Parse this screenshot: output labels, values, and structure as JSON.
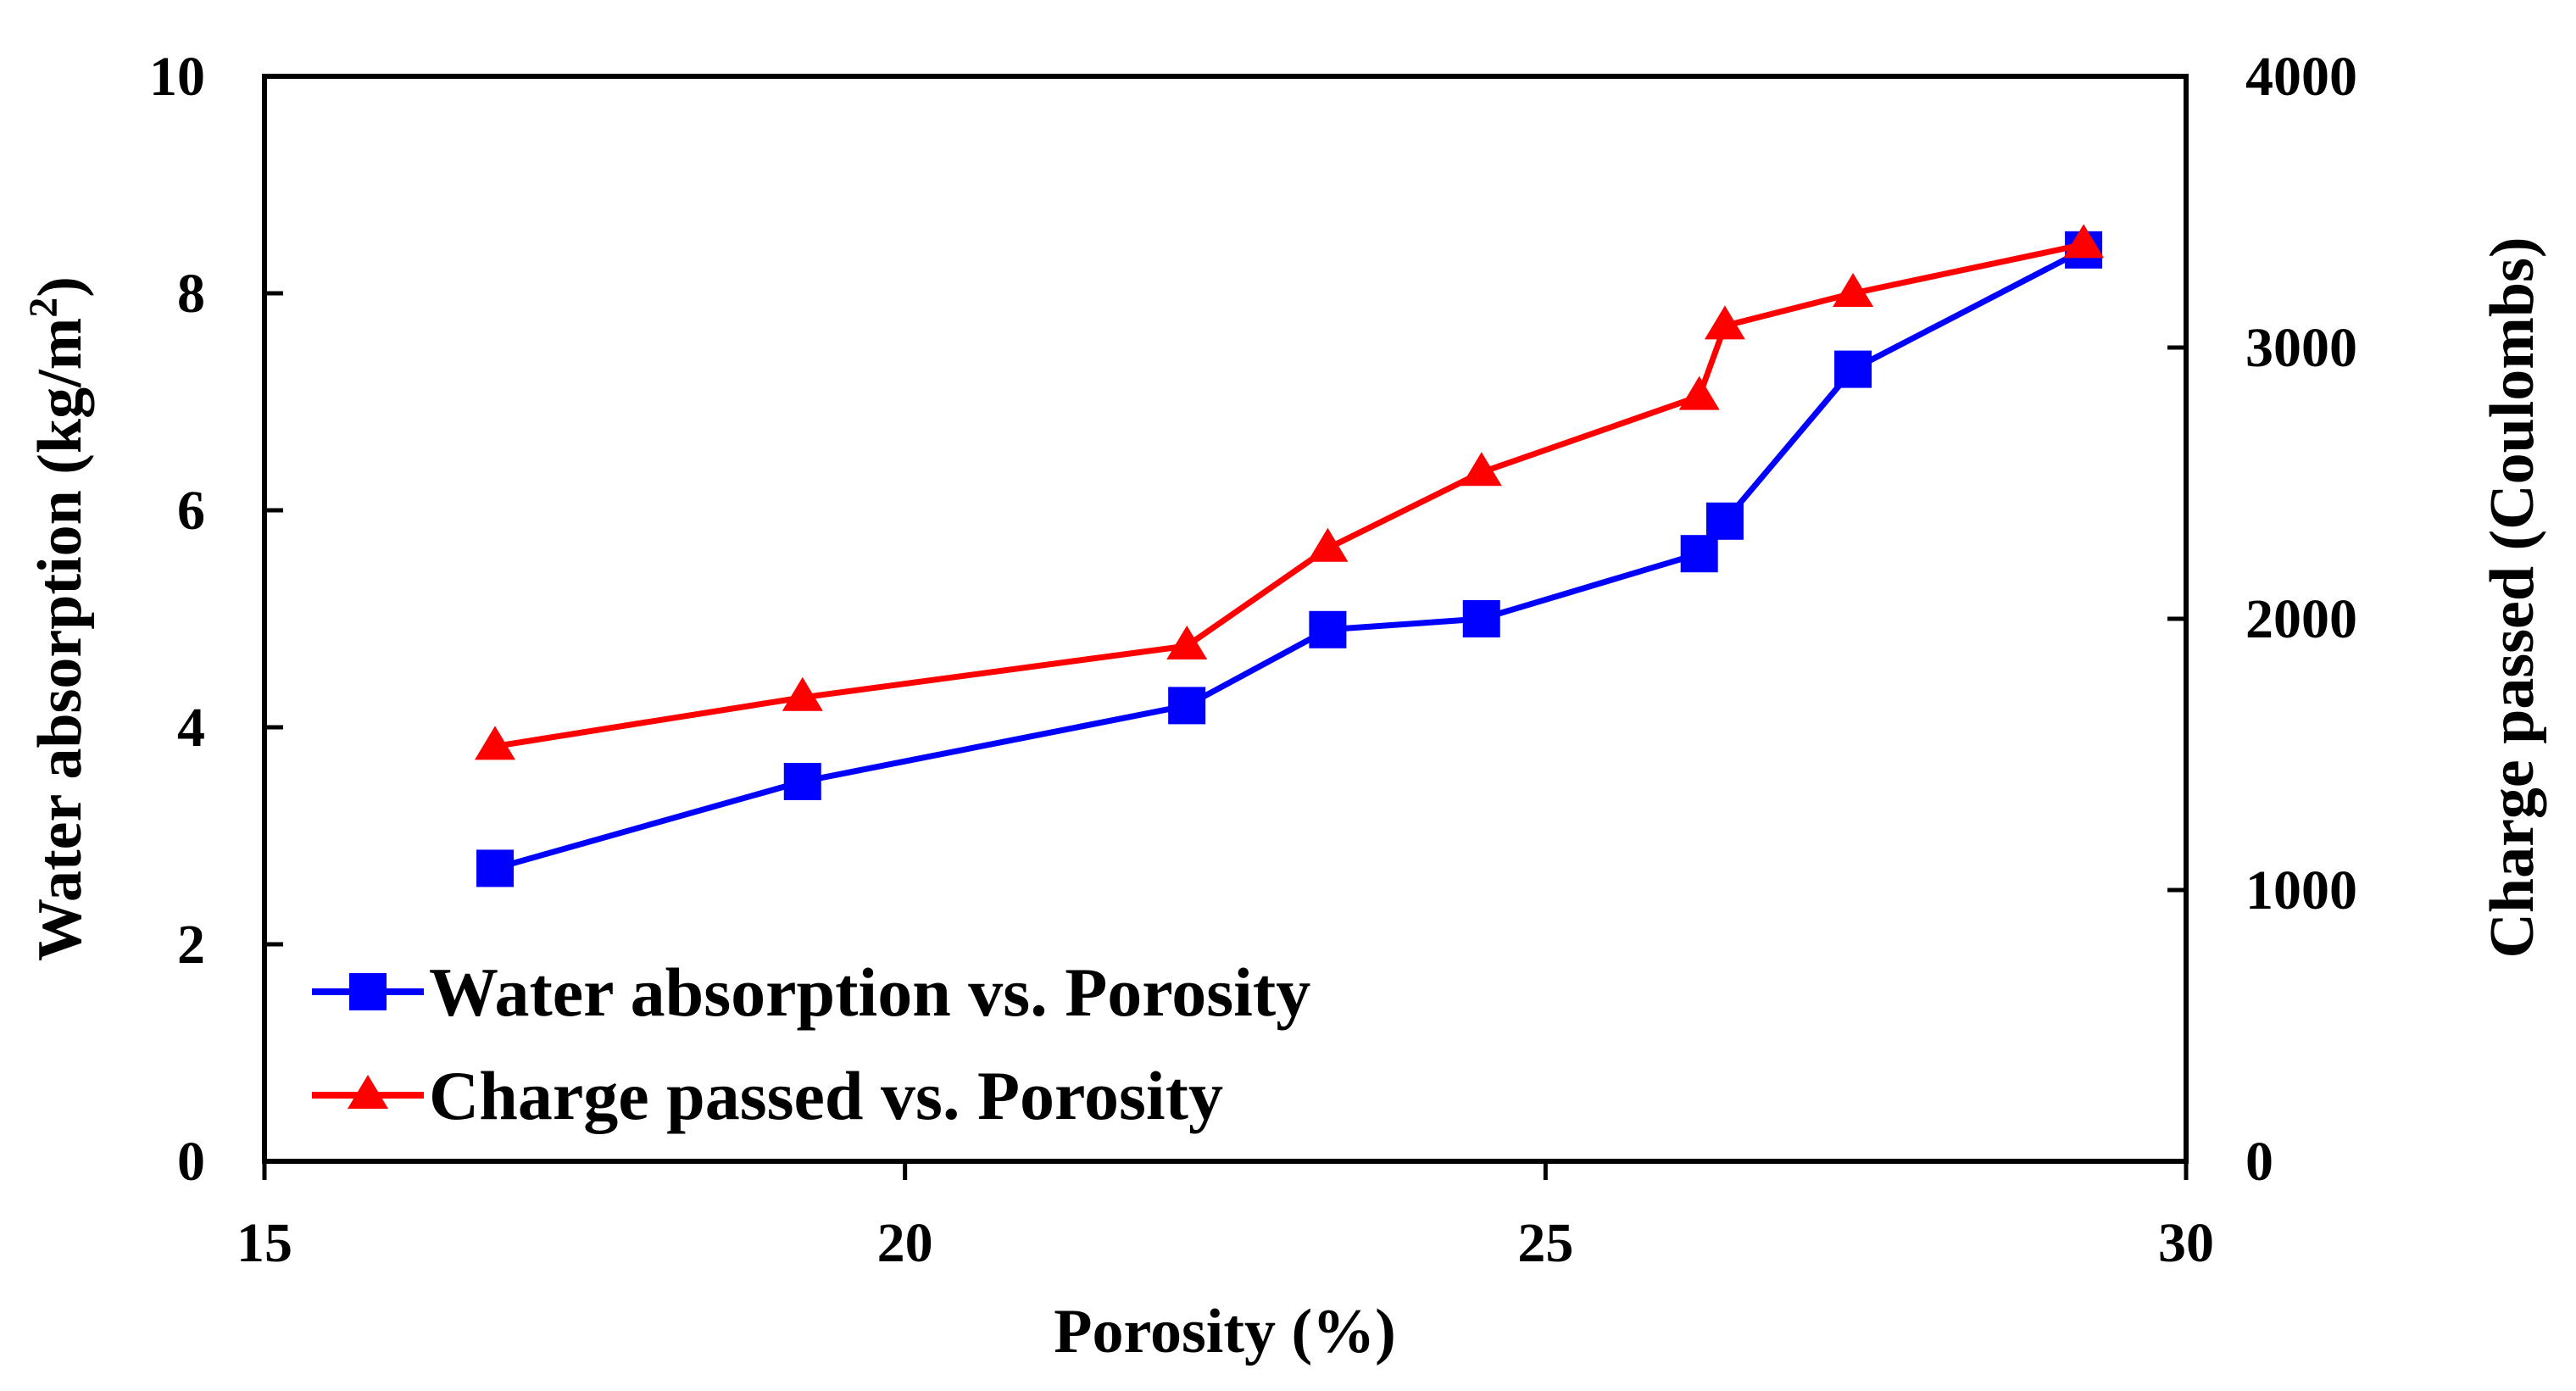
{
  "chart_data": {
    "type": "line",
    "title": "",
    "xlabel": "Porosity (%)",
    "ylabel": "Water absorption (kg/m",
    "ylabel_superscript": "2",
    "ylabel_suffix": ")",
    "y2label": "Charge passed (Coulombs)",
    "xlim": [
      15,
      30
    ],
    "ylim": [
      0,
      10
    ],
    "y2lim": [
      0,
      4000
    ],
    "xticks": [
      15,
      20,
      25,
      30
    ],
    "yticks": [
      0,
      2,
      4,
      6,
      8,
      10
    ],
    "y2ticks": [
      0,
      1000,
      2000,
      3000,
      4000
    ],
    "grid": false,
    "legend_position": "bottom-left",
    "series": [
      {
        "name": "Water absorption vs. Porosity",
        "axis": "left",
        "marker": "square",
        "color": "#0000ff",
        "x": [
          16.8,
          19.2,
          22.2,
          23.3,
          24.5,
          26.2,
          26.4,
          27.4,
          29.2
        ],
        "y": [
          2.7,
          3.5,
          4.2,
          4.9,
          5.0,
          5.6,
          5.9,
          7.3,
          8.4
        ]
      },
      {
        "name": "Charge passed vs. Porosity",
        "axis": "right",
        "marker": "triangle",
        "color": "#ff0000",
        "x": [
          16.8,
          19.2,
          22.2,
          23.3,
          24.5,
          26.2,
          26.4,
          27.4,
          29.2
        ],
        "y": [
          1530,
          1710,
          1900,
          2260,
          2540,
          2820,
          3080,
          3200,
          3380
        ]
      }
    ]
  }
}
